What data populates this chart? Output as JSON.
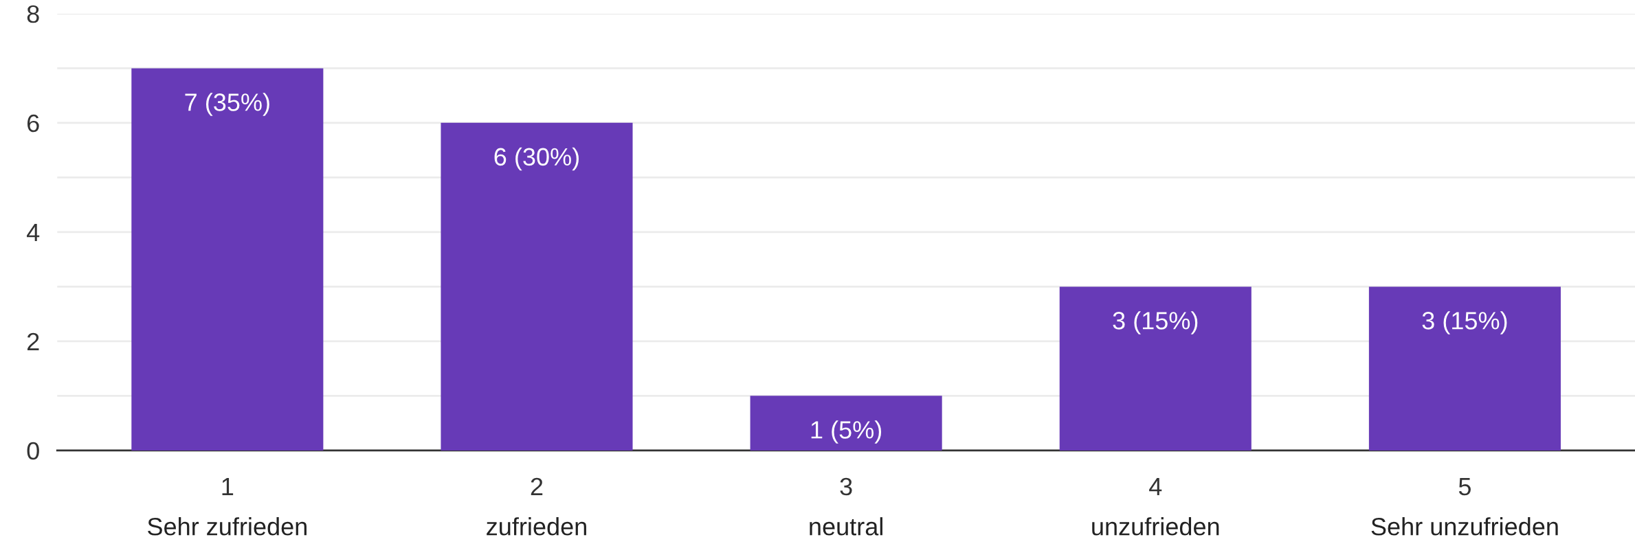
{
  "chart_data": {
    "type": "bar",
    "categories": [
      "1",
      "2",
      "3",
      "4",
      "5"
    ],
    "values": [
      7,
      6,
      1,
      3,
      3
    ],
    "value_labels": [
      "7 (35%)",
      "6 (30%)",
      "1 (5%)",
      "3 (15%)",
      "3 (15%)"
    ],
    "color": "#673ab7",
    "ylim": [
      0,
      8
    ],
    "yticks": [
      0,
      {
        "value": 1,
        "label": null
      },
      2,
      {
        "value": 3,
        "label": null
      },
      4,
      {
        "value": 5,
        "label": null
      },
      6,
      {
        "value": 7,
        "label": null
      },
      8
    ],
    "grid": "y",
    "annotations": [
      "Sehr zufrieden",
      "zufrieden",
      "neutral",
      "unzufrieden",
      "Sehr unzufrieden"
    ]
  }
}
